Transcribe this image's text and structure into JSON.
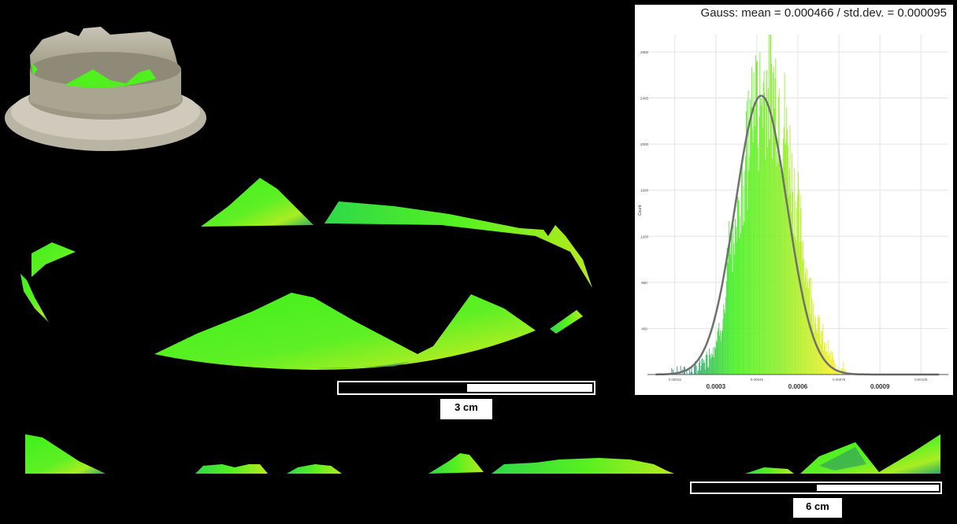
{
  "histogram": {
    "title": "Gauss: mean = 0.000466 / std.dev. = 0.000095",
    "y_axis_label": "Count",
    "y_ticks": [
      "400",
      "800",
      "1200",
      "1600",
      "2000",
      "2400",
      "2800"
    ],
    "x_ticks_major": [
      "0.0003",
      "0.0006",
      "0.0009"
    ],
    "x_ticks_minor": [
      "0.00015",
      "0.00045",
      "0.00075",
      "0.00105"
    ]
  },
  "chart_data": {
    "type": "bar",
    "title": "Gauss: mean = 0.000466 / std.dev. = 0.000095",
    "xlabel": "",
    "ylabel": "Count",
    "xlim": [
      5e-05,
      0.00115
    ],
    "ylim": [
      0,
      2950
    ],
    "fit": {
      "type": "gauss",
      "mean": 0.000466,
      "std": 9.5e-05,
      "peak": 2420
    },
    "grid": true
  },
  "scalebars": [
    {
      "label": "3 cm",
      "fraction_filled": 0.5
    },
    {
      "label": "6 cm",
      "fraction_filled": 0.5
    }
  ],
  "colors": {
    "background": "#000000",
    "deviation_low": "#1f6e8c",
    "deviation_mid": "#3ff01a",
    "deviation_high": "#e6f01e",
    "gauss_curve": "#707070",
    "scalebar": "#ffffff"
  }
}
